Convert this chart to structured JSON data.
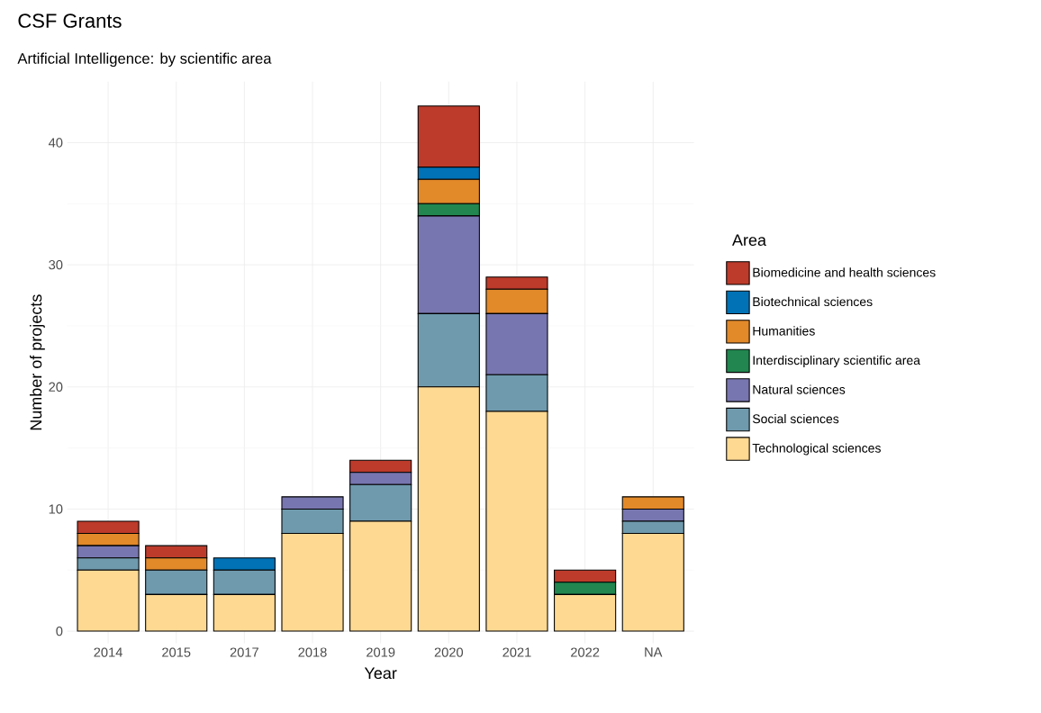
{
  "chart_data": {
    "type": "bar",
    "title": "CSF Grants",
    "subtitle": "Artificial Intelligence: by scientific area",
    "xlabel": "Year",
    "ylabel": "Number of projects",
    "legend_title": "Area",
    "categories": [
      "2014",
      "2015",
      "2017",
      "2018",
      "2019",
      "2020",
      "2021",
      "2022",
      "NA"
    ],
    "stacked": true,
    "ylim": [
      -1,
      45
    ],
    "yticks": [
      0,
      10,
      20,
      30,
      40
    ],
    "grid": true,
    "legend": "right",
    "series": [
      {
        "name": "Technological sciences",
        "color": "#fed992",
        "values": [
          5,
          3,
          3,
          8,
          9,
          20,
          18,
          3,
          8
        ]
      },
      {
        "name": "Social sciences",
        "color": "#6f9aae",
        "values": [
          1,
          2,
          2,
          2,
          3,
          6,
          3,
          0,
          1
        ]
      },
      {
        "name": "Natural sciences",
        "color": "#7876b0",
        "values": [
          1,
          0,
          0,
          1,
          1,
          8,
          5,
          0,
          1
        ]
      },
      {
        "name": "Interdisciplinary scientific area",
        "color": "#21864f",
        "values": [
          0,
          0,
          0,
          0,
          0,
          1,
          0,
          1,
          0
        ]
      },
      {
        "name": "Humanities",
        "color": "#e2892a",
        "values": [
          1,
          1,
          0,
          0,
          0,
          2,
          2,
          0,
          1
        ]
      },
      {
        "name": "Biotechnical sciences",
        "color": "#0072b5",
        "values": [
          0,
          0,
          1,
          0,
          0,
          1,
          0,
          0,
          0
        ]
      },
      {
        "name": "Biomedicine and health sciences",
        "color": "#bd3b2b",
        "values": [
          1,
          1,
          0,
          0,
          1,
          5,
          1,
          1,
          0
        ]
      }
    ]
  }
}
